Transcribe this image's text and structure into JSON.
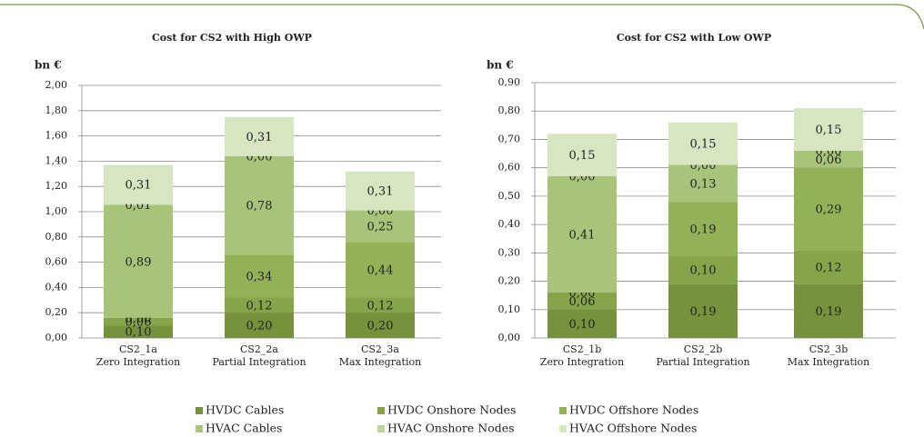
{
  "chart_data": [
    {
      "type": "bar",
      "stacked": true,
      "title": "Cost for CS2 with High OWP",
      "y_label": "bn €",
      "categories": [
        [
          "CS2_1a",
          "Zero Integration"
        ],
        [
          "CS2_2a",
          "Partial Integration"
        ],
        [
          "CS2_3a",
          "Max Integration"
        ]
      ],
      "ylim": [
        0,
        2
      ],
      "yticks": [
        {
          "value": 0,
          "label": "0,00"
        },
        {
          "value": 0.2,
          "label": "0,20"
        },
        {
          "value": 0.4,
          "label": "0,40"
        },
        {
          "value": 0.6,
          "label": "0,60"
        },
        {
          "value": 0.8,
          "label": "0,80"
        },
        {
          "value": 1,
          "label": "1,00"
        },
        {
          "value": 1.2,
          "label": "1,20"
        },
        {
          "value": 1.4,
          "label": "1,40"
        },
        {
          "value": 1.6,
          "label": "1,60"
        },
        {
          "value": 1.8,
          "label": "1,80"
        },
        {
          "value": 2,
          "label": "2,00"
        }
      ],
      "grid": true,
      "series": [
        {
          "name": "HVDC Cables",
          "color": "#76923c",
          "values": [
            0.1,
            0.2,
            0.2
          ],
          "value_labels": [
            "0,10",
            "0,20",
            "0,20"
          ]
        },
        {
          "name": "HVDC Onshore Nodes",
          "color": "#86a44a",
          "values": [
            0.06,
            0.12,
            0.12
          ],
          "value_labels": [
            "0,06",
            "0,12",
            "0,12"
          ]
        },
        {
          "name": "HVDC Offshore Nodes",
          "color": "#93b257",
          "values": [
            0.0,
            0.34,
            0.44
          ],
          "value_labels": [
            "0,00",
            "0,34",
            "0,44"
          ]
        },
        {
          "name": "HVAC Cables",
          "color": "#a7c47a",
          "values": [
            0.89,
            0.78,
            0.25
          ],
          "value_labels": [
            "0,89",
            "0,78",
            "0,25"
          ]
        },
        {
          "name": "HVAC Onshore Nodes",
          "color": "#bdd49a",
          "values": [
            0.01,
            0.0,
            0.0
          ],
          "value_labels": [
            "0,01",
            "0,00",
            "0,00"
          ]
        },
        {
          "name": "HVAC Offshore Nodes",
          "color": "#d8e5c1",
          "values": [
            0.31,
            0.31,
            0.31
          ],
          "value_labels": [
            "0,31",
            "0,31",
            "0,31"
          ]
        }
      ]
    },
    {
      "type": "bar",
      "stacked": true,
      "title": "Cost for CS2 with Low OWP",
      "y_label": "bn €",
      "categories": [
        [
          "CS2_1b",
          "Zero Integration"
        ],
        [
          "CS2_2b",
          "Partial Integration"
        ],
        [
          "CS2_3b",
          "Max Integration"
        ]
      ],
      "ylim": [
        0,
        0.9
      ],
      "yticks": [
        {
          "value": 0,
          "label": "0,00"
        },
        {
          "value": 0.1,
          "label": "0,10"
        },
        {
          "value": 0.2,
          "label": "0,20"
        },
        {
          "value": 0.3,
          "label": "0,30"
        },
        {
          "value": 0.4,
          "label": "0,40"
        },
        {
          "value": 0.5,
          "label": "0,50"
        },
        {
          "value": 0.6,
          "label": "0,60"
        },
        {
          "value": 0.7,
          "label": "0,70"
        },
        {
          "value": 0.8,
          "label": "0,80"
        },
        {
          "value": 0.9,
          "label": "0,90"
        }
      ],
      "grid": true,
      "series": [
        {
          "values": [
            0.1,
            0.19,
            0.19
          ],
          "value_labels": [
            "0,10",
            "0,19",
            "0,19"
          ]
        },
        {
          "values": [
            0.06,
            0.1,
            0.12
          ],
          "value_labels": [
            "0,06",
            "0,10",
            "0,12"
          ]
        },
        {
          "values": [
            0.0,
            0.19,
            0.29
          ],
          "value_labels": [
            "0,00",
            "0,19",
            "0,29"
          ]
        },
        {
          "values": [
            0.41,
            0.13,
            0.06
          ],
          "value_labels": [
            "0,41",
            "0,13",
            "0,06"
          ]
        },
        {
          "values": [
            0.0,
            0.0,
            0.0
          ],
          "value_labels": [
            "0,00",
            "0,00",
            "0,00"
          ]
        },
        {
          "values": [
            0.15,
            0.15,
            0.15
          ],
          "value_labels": [
            "0,15",
            "0,15",
            "0,15"
          ]
        }
      ]
    }
  ]
}
